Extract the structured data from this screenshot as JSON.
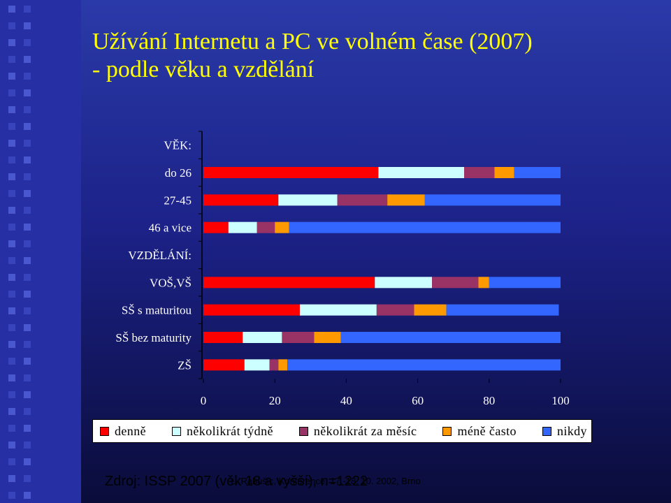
{
  "slide": {
    "title_line1": "Užívání Internetu a PC ve volném čase (2007)",
    "title_line2": "- podle věku a vzdělání",
    "source": "Zdroj: ISSP 2007 (věk 18 a vyšší), n=1222",
    "footer": "L. Rabušic, Konference, 17.-18. 10. 2002, Brno"
  },
  "colors": {
    "background": "#1c2288",
    "title": "#ffff00",
    "series": [
      "#ff0000",
      "#ccffff",
      "#993366",
      "#ff9900",
      "#3366ff"
    ]
  },
  "chart_data": {
    "type": "bar",
    "orientation": "horizontal",
    "stacked": true,
    "categories": [
      "VĚK:",
      "do 26",
      "27-45",
      "46 a vice",
      "VZDĚLÁNÍ:",
      "VOŠ,VŠ",
      "SŠ s maturitou",
      "SŠ bez maturity",
      "ZŠ"
    ],
    "series": [
      {
        "name": "denně",
        "values": [
          null,
          49,
          21,
          7,
          null,
          48,
          27,
          11,
          11.5
        ]
      },
      {
        "name": "několikrát týdně",
        "values": [
          null,
          24,
          16.5,
          8,
          null,
          16,
          21.5,
          11,
          7
        ]
      },
      {
        "name": "několikrát za měsíc",
        "values": [
          null,
          8.5,
          14,
          5,
          null,
          13,
          10.5,
          9,
          2.5
        ]
      },
      {
        "name": "méně často",
        "values": [
          null,
          5.5,
          10.5,
          4,
          null,
          3,
          9,
          7.5,
          2.5
        ]
      },
      {
        "name": "nikdy",
        "values": [
          null,
          13,
          38,
          76,
          null,
          20,
          31.5,
          61.5,
          76.5
        ]
      }
    ],
    "xlim": [
      0,
      100
    ],
    "xticks": [
      "0",
      "20",
      "40",
      "60",
      "80",
      "100"
    ],
    "legend": "bottom",
    "grid": false
  }
}
